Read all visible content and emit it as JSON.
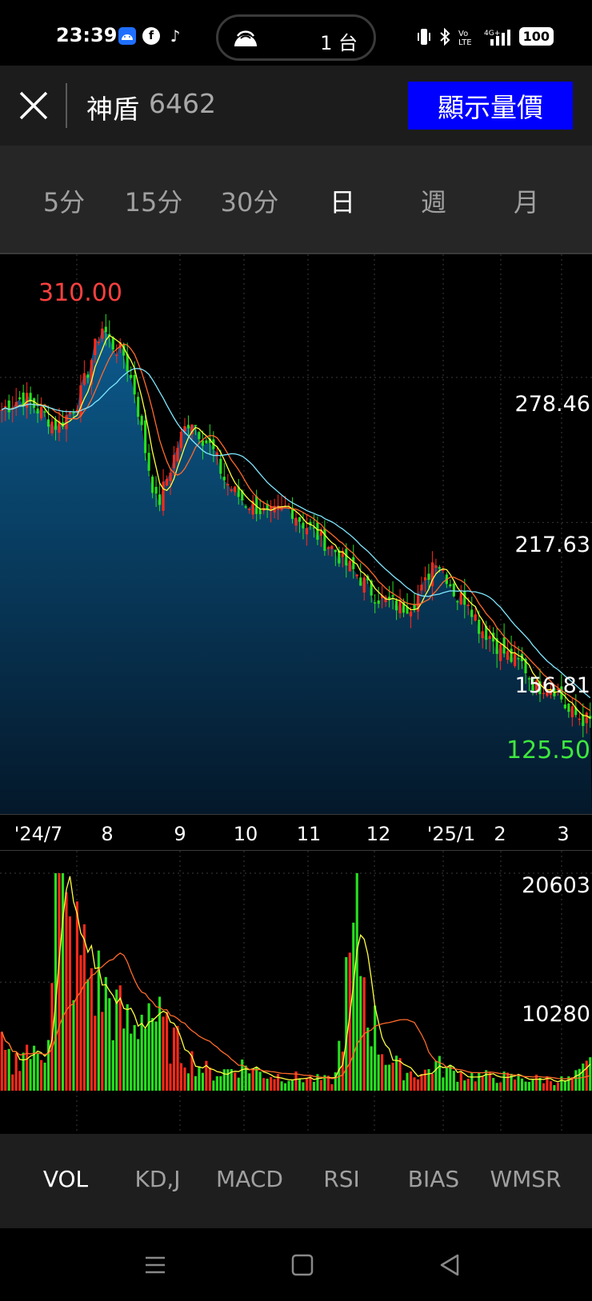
{
  "status_bar": {
    "time": "23:39",
    "island_text": "1 台",
    "battery": "100",
    "icons": [
      "android-app-icon",
      "facebook-icon",
      "tiktok-icon",
      "hotspot-icon",
      "vibrate-icon",
      "bluetooth-icon",
      "volte-icon",
      "4g-signal-icon",
      "battery-icon"
    ]
  },
  "header": {
    "stock_name": "神盾",
    "stock_code": "6462",
    "show_button": "顯示量價",
    "colors": {
      "button_bg": "#0000ff"
    }
  },
  "period_tabs": {
    "items": [
      "5分",
      "15分",
      "30分",
      "日",
      "週",
      "月"
    ],
    "active": "日"
  },
  "price_chart": {
    "high_label": "310.00",
    "low_label": "125.50",
    "y_labels": [
      "278.46",
      "217.63",
      "156.81"
    ]
  },
  "date_axis": [
    "'24/7",
    "8",
    "9",
    "10",
    "11",
    "12",
    "'25/1",
    "2",
    "3"
  ],
  "volume_chart": {
    "y_labels": [
      "20603",
      "10280"
    ]
  },
  "indicator_tabs": {
    "items": [
      "VOL",
      "KD,J",
      "MACD",
      "RSI",
      "BIAS",
      "WMSR"
    ],
    "active": "VOL"
  },
  "colors": {
    "up": "#ff2a1a",
    "down": "#27e020",
    "high_label": "#ff4040",
    "low_label": "#3ee83e",
    "area_top": "#0c5a8c",
    "ma5": "#ffffff",
    "ma10": "#ffff40",
    "ma20": "#ff6a2a",
    "ma60": "#7fe8ff"
  },
  "chart_data": {
    "type": "candlestick",
    "date_ticks": [
      "'24/7",
      "8",
      "9",
      "10",
      "11",
      "12",
      "'25/1",
      "2",
      "3"
    ],
    "price_ticks": [
      278.46,
      217.63,
      156.81
    ],
    "ylim": [
      125.5,
      310.0
    ],
    "high": 310.0,
    "low": 125.5,
    "close_series": [
      265,
      268,
      270,
      266,
      262,
      258,
      263,
      270,
      285,
      300,
      292,
      288,
      272,
      246,
      224,
      238,
      252,
      262,
      254,
      248,
      236,
      230,
      226,
      224,
      220,
      222,
      224,
      218,
      214,
      210,
      206,
      200,
      196,
      190,
      186,
      184,
      182,
      184,
      190,
      204,
      196,
      186,
      186,
      174,
      170,
      164,
      160,
      158,
      148,
      150,
      148,
      138,
      136,
      134
    ],
    "volume_ticks": [
      20603,
      10280
    ],
    "volume_series": [
      3800,
      2200,
      4400,
      3000,
      4200,
      20600,
      14000,
      13000,
      11000,
      9500,
      8000,
      6500,
      5500,
      9000,
      6500,
      5000,
      4000,
      3000,
      2200,
      1600,
      1800,
      2200,
      2400,
      1800,
      1500,
      1400,
      1300,
      1200,
      1100,
      1000,
      1000,
      9000,
      15000,
      8000,
      4500,
      2800,
      2000,
      1700,
      1600,
      2500,
      2000,
      1600,
      1500,
      1400,
      1300,
      1300,
      1200,
      1200,
      1100,
      1100,
      1000,
      1000,
      1500,
      2500
    ],
    "grid": true
  }
}
